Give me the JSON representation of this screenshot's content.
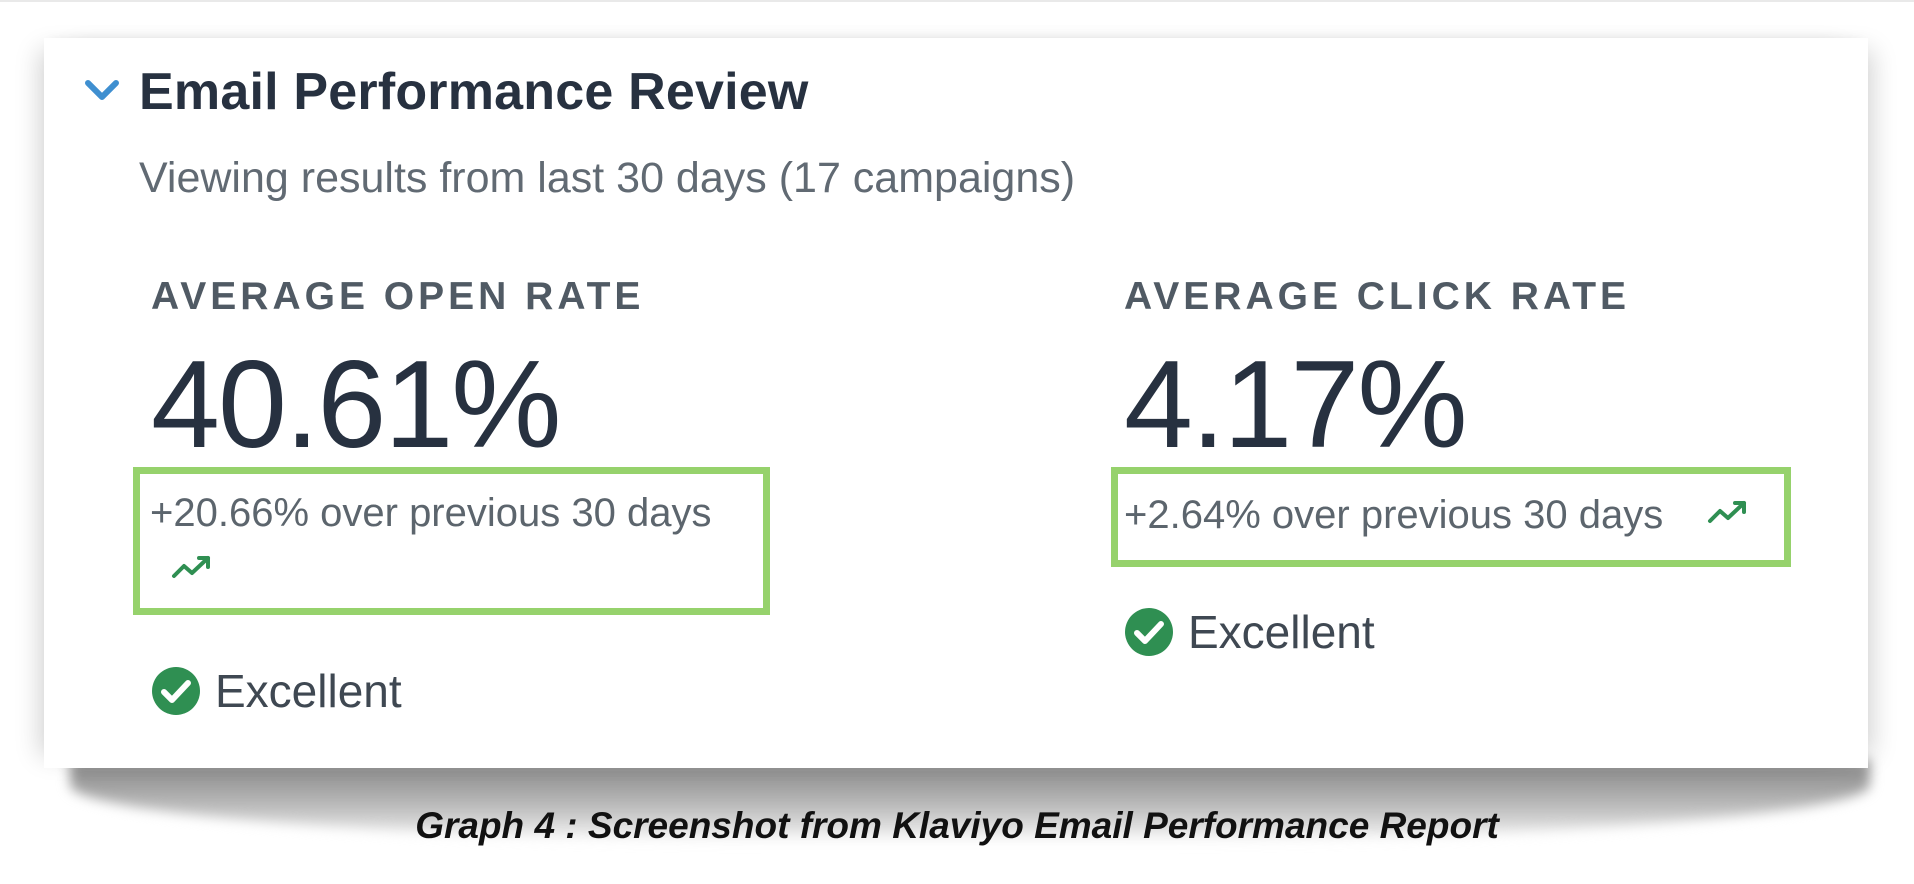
{
  "section": {
    "title": "Email Performance Review",
    "subtitle": "Viewing results from last 30 days (17 campaigns)",
    "expanded": true
  },
  "metrics": [
    {
      "label": "AVERAGE OPEN RATE",
      "value": "40.61%",
      "change_text": "+20.66% over previous 30 days",
      "trend": "up",
      "status": "Excellent"
    },
    {
      "label": "AVERAGE CLICK RATE",
      "value": "4.17%",
      "change_text": "+2.64% over previous 30 days",
      "trend": "up",
      "status": "Excellent"
    }
  ],
  "caption": "Graph 4 : Screenshot from Klaviyo Email Performance Report",
  "icons": {
    "collapse": "chevron-down-icon",
    "trend": "trend-up-icon",
    "status": "check-circle-icon"
  },
  "colors": {
    "accent_blue": "#3f8fd0",
    "highlight_green": "#96d26c",
    "success_green": "#2f8f52",
    "text_dark": "#273140",
    "text_muted": "#616a73"
  }
}
